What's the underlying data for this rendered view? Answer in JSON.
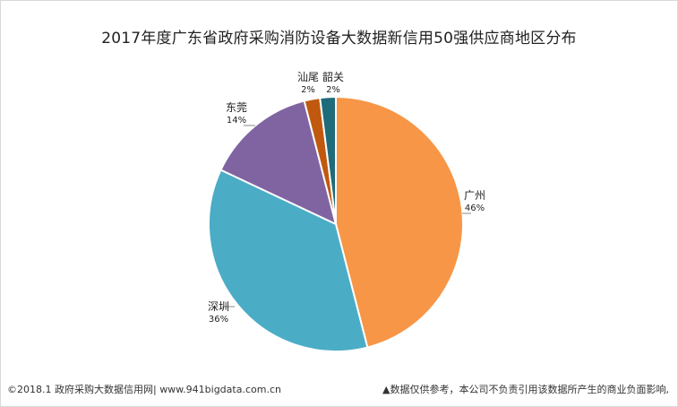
{
  "chart_data": {
    "type": "pie",
    "title": "2017年度广东省政府采购消防设备大数据新信用50强供应商地区分布",
    "slices": [
      {
        "label": "广州",
        "value": 46,
        "display": "46%",
        "color": "#f79646"
      },
      {
        "label": "深圳",
        "value": 36,
        "display": "36%",
        "color": "#4bacc6"
      },
      {
        "label": "东莞",
        "value": 14,
        "display": "14%",
        "color": "#8064a2"
      },
      {
        "label": "汕尾",
        "value": 2,
        "display": "2%",
        "color": "#c0590f"
      },
      {
        "label": "韶关",
        "value": 2,
        "display": "2%",
        "color": "#1f6b7a"
      }
    ]
  },
  "footer": {
    "left": "©2018.1 政府采购大数据信用网| www.941bigdata.com.cn",
    "right": "▲数据仅供参考，本公司不负责引用该数据所产生的商业负面影响,"
  }
}
